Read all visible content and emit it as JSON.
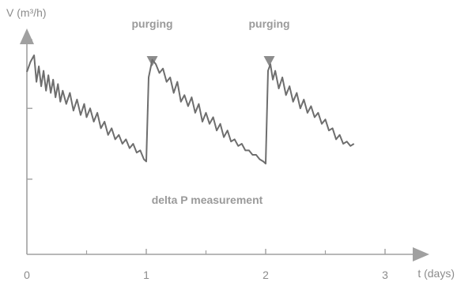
{
  "chart_data": {
    "type": "line",
    "ylabel": "V (m³/h)",
    "xlabel": "t (days)",
    "x_ticks": [
      "0",
      "1",
      "2",
      "3"
    ],
    "xlim": [
      0,
      3.5
    ],
    "ylim": [
      0,
      1
    ],
    "y_ticks": [
      0.34,
      0.66,
      0.97
    ],
    "grid": false,
    "annotations": [
      {
        "text": "purging",
        "x": 1.05
      },
      {
        "text": "purging",
        "x": 2.03
      }
    ],
    "center_label": "delta P measurement",
    "series": [
      {
        "values": [
          [
            0.0,
            0.825
          ],
          [
            0.03,
            0.87
          ],
          [
            0.06,
            0.9
          ],
          [
            0.08,
            0.78
          ],
          [
            0.1,
            0.85
          ],
          [
            0.12,
            0.76
          ],
          [
            0.14,
            0.83
          ],
          [
            0.16,
            0.74
          ],
          [
            0.18,
            0.81
          ],
          [
            0.2,
            0.73
          ],
          [
            0.22,
            0.79
          ],
          [
            0.24,
            0.71
          ],
          [
            0.26,
            0.77
          ],
          [
            0.28,
            0.69
          ],
          [
            0.3,
            0.74
          ],
          [
            0.33,
            0.68
          ],
          [
            0.36,
            0.73
          ],
          [
            0.39,
            0.65
          ],
          [
            0.42,
            0.7
          ],
          [
            0.45,
            0.63
          ],
          [
            0.48,
            0.68
          ],
          [
            0.5,
            0.62
          ],
          [
            0.53,
            0.66
          ],
          [
            0.56,
            0.6
          ],
          [
            0.59,
            0.64
          ],
          [
            0.62,
            0.57
          ],
          [
            0.65,
            0.6
          ],
          [
            0.68,
            0.54
          ],
          [
            0.71,
            0.57
          ],
          [
            0.74,
            0.52
          ],
          [
            0.77,
            0.54
          ],
          [
            0.8,
            0.5
          ],
          [
            0.83,
            0.52
          ],
          [
            0.86,
            0.48
          ],
          [
            0.89,
            0.5
          ],
          [
            0.92,
            0.46
          ],
          [
            0.95,
            0.47
          ],
          [
            0.98,
            0.43
          ],
          [
            1.0,
            0.42
          ],
          [
            1.02,
            0.8
          ],
          [
            1.05,
            0.88
          ],
          [
            1.08,
            0.86
          ],
          [
            1.11,
            0.82
          ],
          [
            1.14,
            0.84
          ],
          [
            1.17,
            0.78
          ],
          [
            1.2,
            0.8
          ],
          [
            1.23,
            0.73
          ],
          [
            1.26,
            0.78
          ],
          [
            1.29,
            0.69
          ],
          [
            1.32,
            0.72
          ],
          [
            1.35,
            0.67
          ],
          [
            1.38,
            0.71
          ],
          [
            1.41,
            0.64
          ],
          [
            1.44,
            0.68
          ],
          [
            1.47,
            0.6
          ],
          [
            1.5,
            0.64
          ],
          [
            1.53,
            0.59
          ],
          [
            1.56,
            0.62
          ],
          [
            1.59,
            0.56
          ],
          [
            1.62,
            0.59
          ],
          [
            1.65,
            0.53
          ],
          [
            1.68,
            0.56
          ],
          [
            1.71,
            0.51
          ],
          [
            1.74,
            0.52
          ],
          [
            1.77,
            0.49
          ],
          [
            1.8,
            0.5
          ],
          [
            1.83,
            0.47
          ],
          [
            1.86,
            0.47
          ],
          [
            1.89,
            0.45
          ],
          [
            1.92,
            0.45
          ],
          [
            1.95,
            0.43
          ],
          [
            1.98,
            0.42
          ],
          [
            2.0,
            0.41
          ],
          [
            2.02,
            0.83
          ],
          [
            2.04,
            0.86
          ],
          [
            2.06,
            0.79
          ],
          [
            2.08,
            0.83
          ],
          [
            2.11,
            0.75
          ],
          [
            2.14,
            0.8
          ],
          [
            2.17,
            0.72
          ],
          [
            2.2,
            0.76
          ],
          [
            2.23,
            0.69
          ],
          [
            2.26,
            0.73
          ],
          [
            2.29,
            0.66
          ],
          [
            2.32,
            0.7
          ],
          [
            2.35,
            0.64
          ],
          [
            2.38,
            0.67
          ],
          [
            2.41,
            0.62
          ],
          [
            2.44,
            0.64
          ],
          [
            2.47,
            0.59
          ],
          [
            2.5,
            0.61
          ],
          [
            2.53,
            0.56
          ],
          [
            2.56,
            0.57
          ],
          [
            2.59,
            0.52
          ],
          [
            2.62,
            0.54
          ],
          [
            2.65,
            0.5
          ],
          [
            2.68,
            0.51
          ],
          [
            2.71,
            0.49
          ],
          [
            2.74,
            0.5
          ]
        ],
        "color": "#6e6e6e"
      }
    ]
  }
}
